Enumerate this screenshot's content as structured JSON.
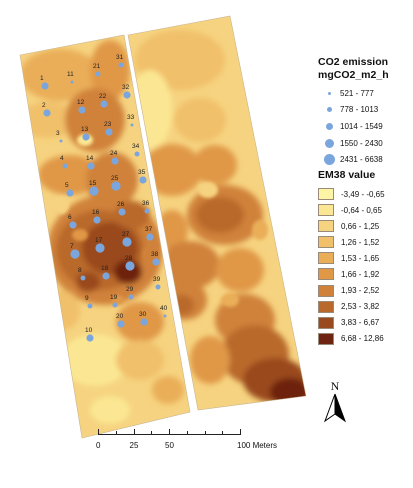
{
  "legend": {
    "co2_title": "CO2 emission",
    "co2_subtitle": "mgCO2_m2_h",
    "co2_classes": [
      {
        "label": "521 - 777",
        "size": 1
      },
      {
        "label": "778 - 1013",
        "size": 2
      },
      {
        "label": "1014 - 1549",
        "size": 3
      },
      {
        "label": "1550 - 2430",
        "size": 4
      },
      {
        "label": "2431 - 6638",
        "size": 5
      }
    ],
    "co2_color": "#7ba6dd",
    "em38_title": "EM38 value",
    "em38_classes": [
      {
        "label": "-3,49 - -0,65",
        "color": "#fdf4a6"
      },
      {
        "label": "-0,64 - 0,65",
        "color": "#fbe793"
      },
      {
        "label": "0,66 - 1,25",
        "color": "#f6d380"
      },
      {
        "label": "1,26 - 1,52",
        "color": "#f1c06a"
      },
      {
        "label": "1,53 - 1,65",
        "color": "#eaae58"
      },
      {
        "label": "1,66 - 1,92",
        "color": "#e09847"
      },
      {
        "label": "1,93 - 2,52",
        "color": "#d0823a"
      },
      {
        "label": "2,53 - 3,82",
        "color": "#b9692c"
      },
      {
        "label": "3,83 - 6,67",
        "color": "#9a4a1f"
      },
      {
        "label": "6,68 - 12,86",
        "color": "#6e2410"
      }
    ]
  },
  "north_arrow": {
    "letter": "N",
    "icon": "north-arrow-icon"
  },
  "scale_bar": {
    "labels": [
      "0",
      "25",
      "50",
      "100 Meters"
    ],
    "values_m": [
      0,
      25,
      50,
      100
    ]
  },
  "samples": [
    {
      "id": "1",
      "cls": 3
    },
    {
      "id": "2",
      "cls": 3
    },
    {
      "id": "3",
      "cls": 1
    },
    {
      "id": "4",
      "cls": 2
    },
    {
      "id": "5",
      "cls": 3
    },
    {
      "id": "6",
      "cls": 3
    },
    {
      "id": "7",
      "cls": 4
    },
    {
      "id": "8",
      "cls": 2
    },
    {
      "id": "9",
      "cls": 2
    },
    {
      "id": "10",
      "cls": 3
    },
    {
      "id": "11",
      "cls": 1
    },
    {
      "id": "12",
      "cls": 3
    },
    {
      "id": "13",
      "cls": 3
    },
    {
      "id": "14",
      "cls": 3
    },
    {
      "id": "15",
      "cls": 4
    },
    {
      "id": "16",
      "cls": 3
    },
    {
      "id": "17",
      "cls": 4
    },
    {
      "id": "18",
      "cls": 3
    },
    {
      "id": "19",
      "cls": 2
    },
    {
      "id": "20",
      "cls": 3
    },
    {
      "id": "21",
      "cls": 2
    },
    {
      "id": "22",
      "cls": 3
    },
    {
      "id": "23",
      "cls": 3
    },
    {
      "id": "24",
      "cls": 3
    },
    {
      "id": "25",
      "cls": 4
    },
    {
      "id": "26",
      "cls": 3
    },
    {
      "id": "27",
      "cls": 4
    },
    {
      "id": "28",
      "cls": 4
    },
    {
      "id": "29",
      "cls": 2
    },
    {
      "id": "30",
      "cls": 3
    },
    {
      "id": "31",
      "cls": 2
    },
    {
      "id": "32",
      "cls": 3
    },
    {
      "id": "33",
      "cls": 1
    },
    {
      "id": "34",
      "cls": 2
    },
    {
      "id": "35",
      "cls": 3
    },
    {
      "id": "36",
      "cls": 2
    },
    {
      "id": "37",
      "cls": 3
    },
    {
      "id": "38",
      "cls": 3
    },
    {
      "id": "39",
      "cls": 2
    },
    {
      "id": "40",
      "cls": 1
    }
  ]
}
